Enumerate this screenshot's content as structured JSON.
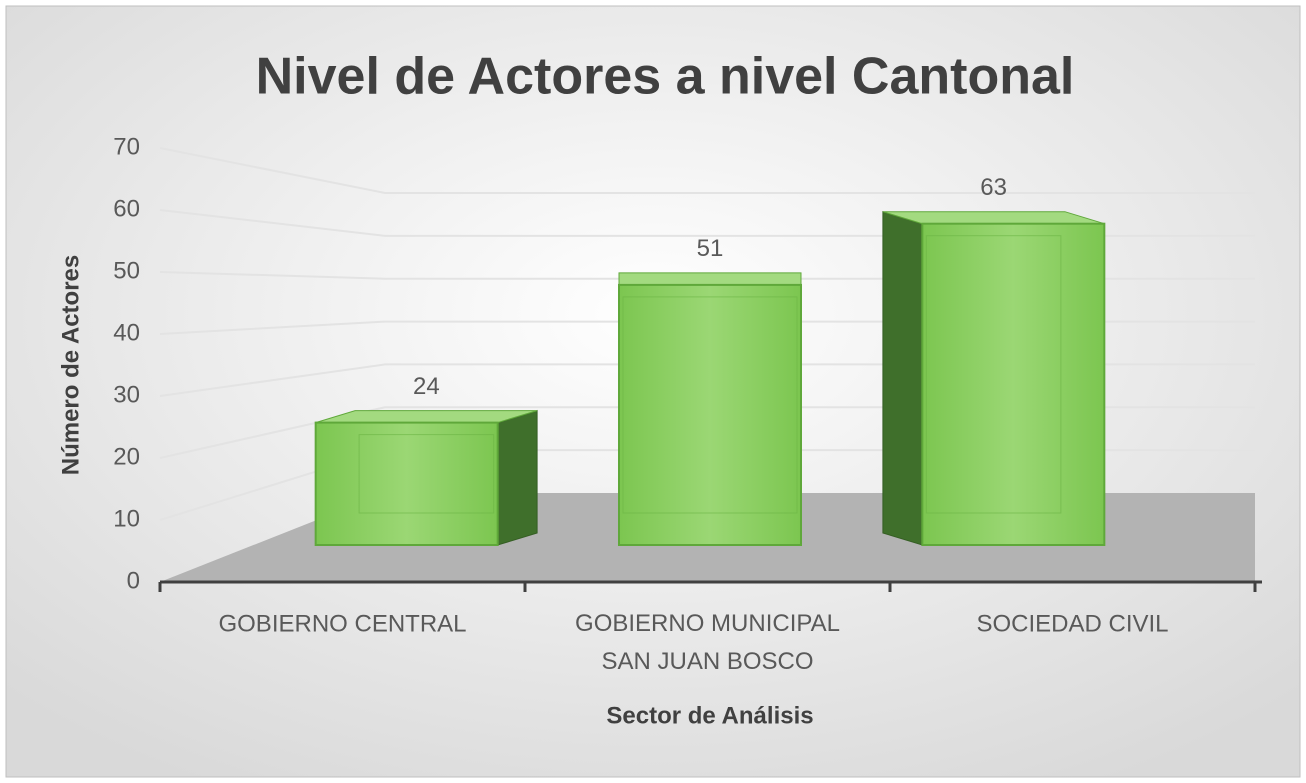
{
  "chart_data": {
    "type": "bar3d",
    "title": "Nivel de Actores a nivel Cantonal",
    "x_label": "Sector de Análisis",
    "y_label": "Número de Actores",
    "categories": [
      "GOBIERNO CENTRAL",
      "GOBIERNO MUNICIPAL\nSAN JUAN BOSCO",
      "SOCIEDAD CIVIL"
    ],
    "values": [
      24,
      51,
      63
    ],
    "color": "#8cd063",
    "ylim": [
      0,
      70
    ],
    "yticks": [
      0,
      10,
      20,
      30,
      40,
      50,
      60,
      70
    ],
    "grid": true
  }
}
